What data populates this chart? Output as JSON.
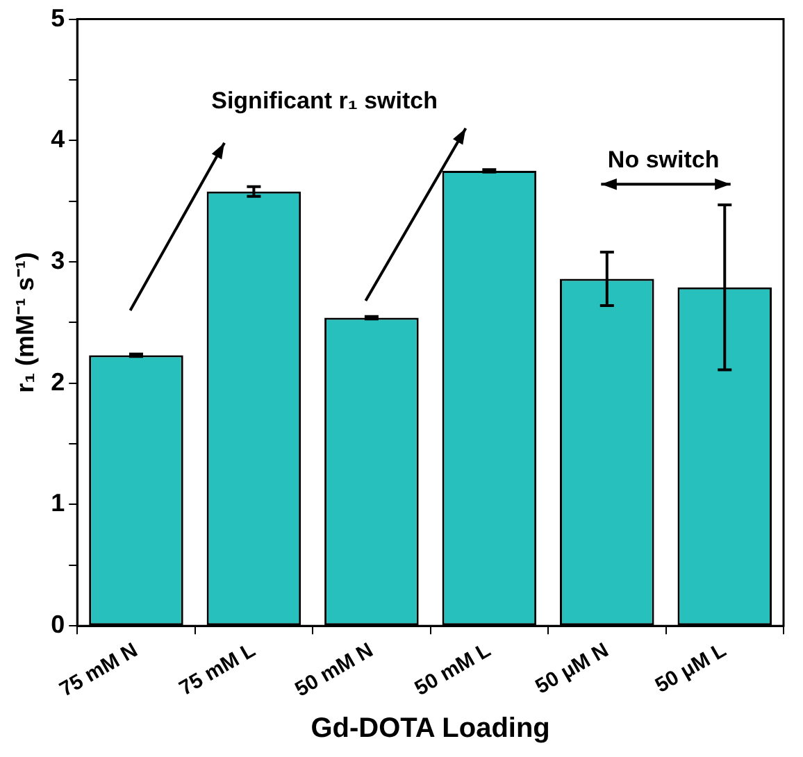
{
  "chart_data": {
    "type": "bar",
    "xlabel": "Gd-DOTA Loading",
    "ylabel": "r₁ (mM⁻¹ s⁻¹)",
    "categories": [
      "75 mM N",
      "75 mM L",
      "50 mM N",
      "50 mM L",
      "50 μM N",
      "50 μM L"
    ],
    "values": [
      2.23,
      3.58,
      2.54,
      3.75,
      2.86,
      2.79
    ],
    "errors": [
      0.01,
      0.04,
      0.01,
      0.01,
      0.22,
      0.68
    ],
    "color": "#28c0bd",
    "ylim": [
      0,
      5
    ],
    "yticks": [
      0,
      {
        "value": 0.5,
        "label": null
      },
      1,
      {
        "value": 1.5,
        "label": null
      },
      2,
      {
        "value": 2.5,
        "label": null
      },
      3,
      {
        "value": 3.5,
        "label": null
      },
      4,
      {
        "value": 4.5,
        "label": null
      },
      5
    ],
    "annotations": [
      "Significant r₁ switch",
      "No switch"
    ],
    "legend": false,
    "grid": false
  }
}
